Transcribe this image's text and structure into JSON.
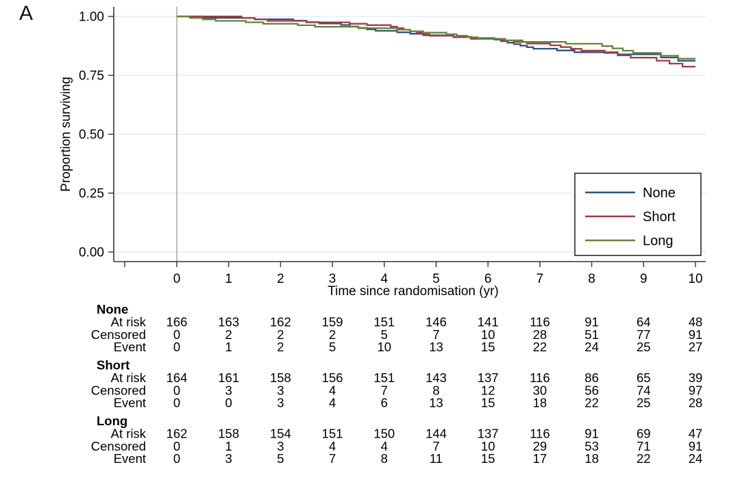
{
  "panel_label": "A",
  "chart_data": {
    "type": "line",
    "subtype": "kaplan-meier-step",
    "title": "",
    "xlabel": "Time since randomisation (yr)",
    "ylabel": "Proportion surviving",
    "x_ticks": [
      0,
      1,
      2,
      3,
      4,
      5,
      6,
      7,
      8,
      9,
      10
    ],
    "y_ticks": [
      {
        "value": 1.0,
        "label": "1.00"
      },
      {
        "value": 0.75,
        "label": "0.75"
      },
      {
        "value": 0.5,
        "label": "0.50"
      },
      {
        "value": 0.25,
        "label": "0.25"
      },
      {
        "value": 0.0,
        "label": "0.00"
      }
    ],
    "xlim": [
      -1.2,
      10.2
    ],
    "ylim": [
      0,
      1
    ],
    "grid": "horizontal-light",
    "reference_line_x": 0,
    "legend": {
      "position": "inside-bottom-right",
      "entries": [
        "None",
        "Short",
        "Long"
      ]
    },
    "colors": {
      "none": "#2b547e",
      "short": "#9e3d45",
      "long": "#66833a",
      "gridline": "#e3edf3",
      "zero_line": "#ababab",
      "axis": "#333333"
    },
    "series": [
      {
        "name": "None",
        "color": "#2b547e",
        "survival_by_year": [
          1.0,
          0.994,
          0.988,
          0.97,
          0.939,
          0.92,
          0.908,
          0.863,
          0.848,
          0.839,
          0.812
        ]
      },
      {
        "name": "Short",
        "color": "#9e3d45",
        "survival_by_year": [
          1.0,
          1.0,
          0.981,
          0.975,
          0.963,
          0.918,
          0.905,
          0.885,
          0.855,
          0.825,
          0.787
        ]
      },
      {
        "name": "Long",
        "color": "#66833a",
        "survival_by_year": [
          1.0,
          0.981,
          0.969,
          0.956,
          0.95,
          0.931,
          0.905,
          0.892,
          0.884,
          0.845,
          0.821
        ]
      }
    ],
    "risk_table": {
      "time_points": [
        0,
        1,
        2,
        3,
        4,
        5,
        6,
        7,
        8,
        9,
        10
      ],
      "row_labels": [
        "At risk",
        "Censored",
        "Event"
      ],
      "groups": [
        {
          "name": "None",
          "at_risk": [
            166,
            163,
            162,
            159,
            151,
            146,
            141,
            116,
            91,
            64,
            48
          ],
          "censored": [
            0,
            2,
            2,
            2,
            5,
            7,
            10,
            28,
            51,
            77,
            91
          ],
          "event": [
            0,
            1,
            2,
            5,
            10,
            13,
            15,
            22,
            24,
            25,
            27
          ]
        },
        {
          "name": "Short",
          "at_risk": [
            164,
            161,
            158,
            156,
            151,
            143,
            137,
            116,
            86,
            65,
            39
          ],
          "censored": [
            0,
            3,
            3,
            4,
            7,
            8,
            12,
            30,
            56,
            74,
            97
          ],
          "event": [
            0,
            0,
            3,
            4,
            6,
            13,
            15,
            18,
            22,
            25,
            28
          ]
        },
        {
          "name": "Long",
          "at_risk": [
            162,
            158,
            154,
            151,
            150,
            144,
            137,
            116,
            91,
            69,
            47
          ],
          "censored": [
            0,
            1,
            3,
            4,
            4,
            7,
            10,
            29,
            53,
            71,
            91
          ],
          "event": [
            0,
            3,
            5,
            7,
            8,
            11,
            15,
            17,
            18,
            22,
            24
          ]
        }
      ]
    }
  }
}
